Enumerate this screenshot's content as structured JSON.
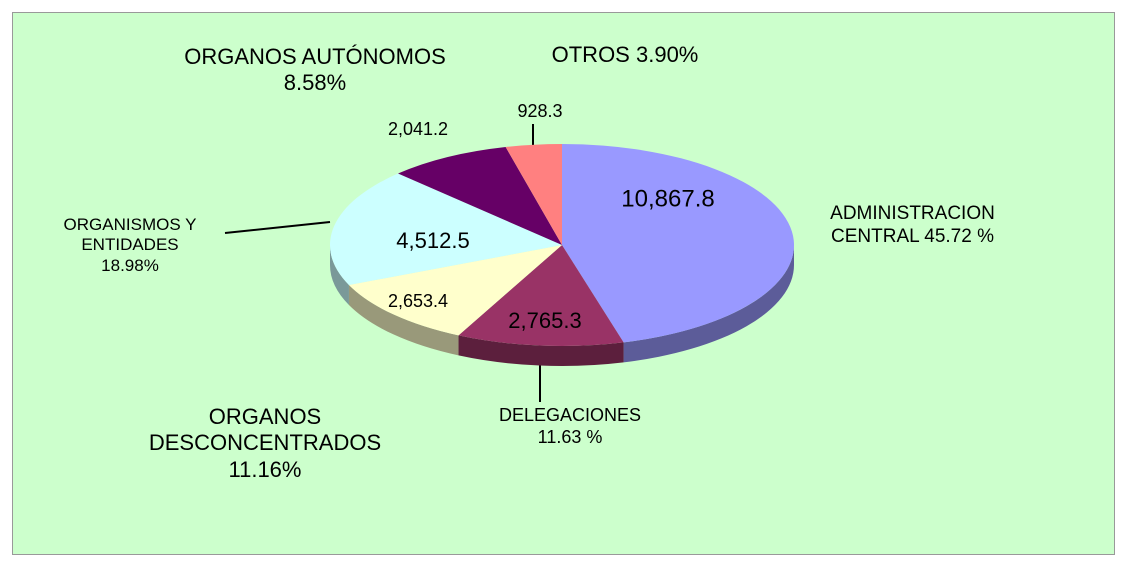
{
  "chart_data": {
    "type": "pie",
    "categories": [
      "ADMINISTRACION CENTRAL",
      "DELEGACIONES",
      "ORGANOS DESCONCENTRADOS",
      "ORGANISMOS Y ENTIDADES",
      "ORGANOS AUTÓNOMOS",
      "OTROS"
    ],
    "values": [
      10867.8,
      2765.3,
      2653.4,
      4512.5,
      2041.2,
      928.3
    ],
    "value_labels": [
      "10,867.8",
      "2,765.3",
      "2,653.4",
      "4,512.5",
      "2,041.2",
      "928.3"
    ],
    "percents": [
      45.72,
      11.63,
      11.16,
      18.98,
      8.58,
      3.9
    ],
    "percent_labels": [
      "45.72 %",
      "11.63 %",
      "11.16%",
      "18.98%",
      "8.58%",
      "3.90%"
    ],
    "colors": [
      "#9999ff",
      "#993366",
      "#ffffcc",
      "#ccffff",
      "#660066",
      "#ff8080"
    ]
  }
}
